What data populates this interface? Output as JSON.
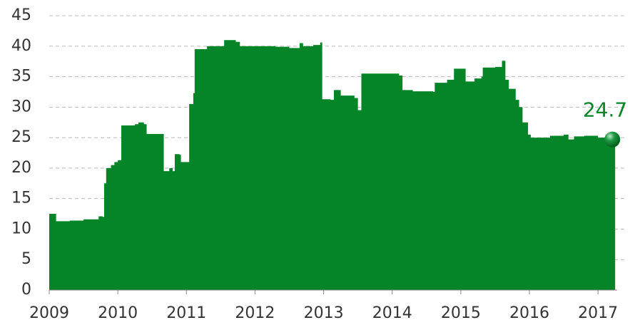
{
  "chart_data": {
    "type": "area",
    "x": [
      2009.0,
      2009.08,
      2009.1,
      2009.3,
      2009.5,
      2009.7,
      2009.72,
      2009.78,
      2009.8,
      2009.83,
      2009.9,
      2009.95,
      2010.0,
      2010.05,
      2010.25,
      2010.3,
      2010.38,
      2010.42,
      2010.65,
      2010.67,
      2010.75,
      2010.8,
      2010.83,
      2010.9,
      2010.92,
      2011.02,
      2011.04,
      2011.1,
      2011.12,
      2011.3,
      2011.5,
      2011.55,
      2011.72,
      2011.78,
      2012.0,
      2012.3,
      2012.5,
      2012.65,
      2012.7,
      2012.85,
      2012.95,
      2012.98,
      2013.1,
      2013.15,
      2013.25,
      2013.45,
      2013.5,
      2013.55,
      2013.75,
      2014.1,
      2014.15,
      2014.3,
      2014.6,
      2014.62,
      2014.8,
      2014.9,
      2015.05,
      2015.07,
      2015.2,
      2015.3,
      2015.32,
      2015.5,
      2015.6,
      2015.65,
      2015.7,
      2015.8,
      2015.85,
      2015.9,
      2015.98,
      2016.02,
      2016.3,
      2016.5,
      2016.57,
      2016.65,
      2016.8,
      2017.0,
      2017.1,
      2017.25
    ],
    "values": [
      12.5,
      12.5,
      11.3,
      11.4,
      11.6,
      11.6,
      12.1,
      12.0,
      17.5,
      20,
      20.5,
      21,
      21.3,
      27,
      27.2,
      27.5,
      27.2,
      25.6,
      25.6,
      19.5,
      20,
      19.5,
      22.3,
      22.2,
      21,
      21,
      30.5,
      32.3,
      39.5,
      40.0,
      40.0,
      41.0,
      40.7,
      40.0,
      40.0,
      39.9,
      39.7,
      40.5,
      40.0,
      40.2,
      40.6,
      31.3,
      31.2,
      32.8,
      31.9,
      31.5,
      29.5,
      35.5,
      35.5,
      35.2,
      32.8,
      32.6,
      32.5,
      34.0,
      34.5,
      36.3,
      36.3,
      34.2,
      34.7,
      35.0,
      36.5,
      36.6,
      37.6,
      34.5,
      33.0,
      31.2,
      30.0,
      27.5,
      25.5,
      25.0,
      25.3,
      25.5,
      24.7,
      25.2,
      25.3,
      25.0,
      24.7,
      24.7
    ],
    "color": "#058527",
    "xlim": [
      2009,
      2017.3
    ],
    "xticks": [
      2009,
      2010,
      2011,
      2012,
      2013,
      2014,
      2015,
      2016,
      2017
    ],
    "ylim": [
      0,
      45
    ],
    "yticks": [
      0,
      5,
      10,
      15,
      20,
      25,
      30,
      35,
      40,
      45
    ],
    "grid": true
  }
}
